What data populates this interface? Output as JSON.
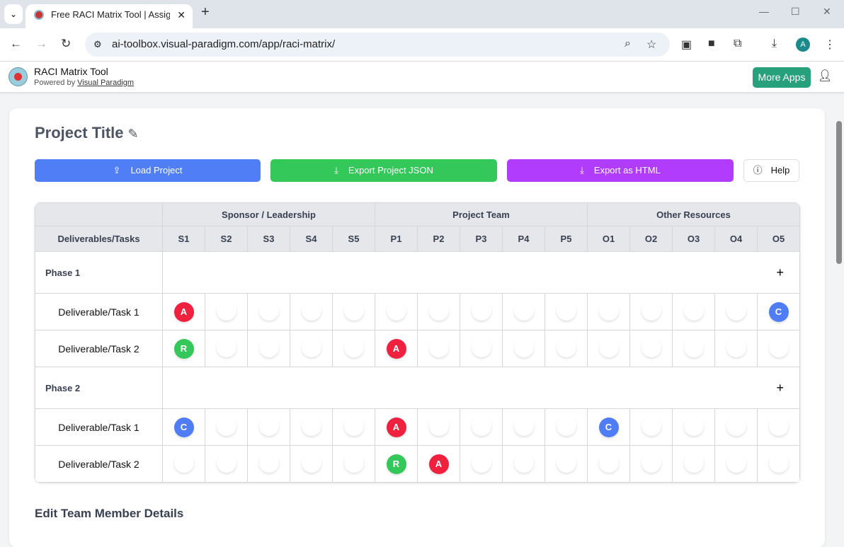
{
  "browser": {
    "tab_title": "Free RACI Matrix Tool | Assign R",
    "url": "ai-toolbox.visual-paradigm.com/app/raci-matrix/",
    "profile": "A"
  },
  "app": {
    "title": "RACI Matrix Tool",
    "powered_prefix": "Powered by ",
    "powered_link": "Visual Paradigm",
    "more_apps": "More Apps"
  },
  "project": {
    "title": "Project Title"
  },
  "buttons": {
    "load": "Load Project",
    "export_json": "Export Project JSON",
    "export_html": "Export as HTML",
    "help": "Help"
  },
  "colors": {
    "load": "#4f7ef7",
    "export_json": "#34c759",
    "export_html": "#b13cfd",
    "A": "#f0213f",
    "R": "#34c759",
    "C": "#4f7df5",
    "I": "#f5a623"
  },
  "matrix": {
    "task_header": "Deliverables/Tasks",
    "groups": [
      {
        "label": "Sponsor / Leadership",
        "members": [
          "S1",
          "S2",
          "S3",
          "S4",
          "S5"
        ]
      },
      {
        "label": "Project Team",
        "members": [
          "P1",
          "P2",
          "P3",
          "P4",
          "P5"
        ]
      },
      {
        "label": "Other Resources",
        "members": [
          "O1",
          "O2",
          "O3",
          "O4",
          "O5"
        ]
      }
    ],
    "phases": [
      {
        "label": "Phase 1",
        "add": "+",
        "tasks": [
          {
            "label": "Deliverable/Task 1",
            "roles": [
              "A",
              "",
              "",
              "",
              "",
              "",
              "",
              "",
              "",
              "",
              "",
              "",
              "",
              "",
              "C"
            ]
          },
          {
            "label": "Deliverable/Task 2",
            "roles": [
              "R",
              "",
              "",
              "",
              "",
              "A",
              "",
              "",
              "",
              "",
              "",
              "",
              "",
              "",
              ""
            ]
          }
        ]
      },
      {
        "label": "Phase 2",
        "add": "+",
        "tasks": [
          {
            "label": "Deliverable/Task 1",
            "roles": [
              "C",
              "",
              "",
              "",
              "",
              "A",
              "",
              "",
              "",
              "",
              "C",
              "",
              "",
              "",
              ""
            ]
          },
          {
            "label": "Deliverable/Task 2",
            "roles": [
              "",
              "",
              "",
              "",
              "",
              "R",
              "A",
              "",
              "",
              "",
              "",
              "",
              "",
              "",
              ""
            ]
          }
        ]
      }
    ]
  },
  "section": {
    "edit_team": "Edit Team Member Details"
  }
}
